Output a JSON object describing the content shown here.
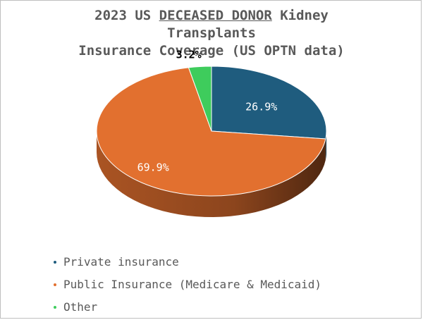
{
  "title": {
    "line1_prefix": "2023 US ",
    "line1_underlined": "DECEASED DONOR",
    "line1_suffix": " Kidney",
    "line2": "Transplants",
    "line3": "Insurance Coverage (US OPTN data)"
  },
  "chart_data": {
    "type": "pie",
    "style": "3d",
    "categories": [
      "Private insurance",
      "Public Insurance (Medicare & Medicaid)",
      "Other"
    ],
    "values": [
      26.9,
      69.9,
      3.2
    ],
    "data_labels": [
      "26.9%",
      "69.9%",
      "3.2%"
    ],
    "colors": [
      "#1f5c7e",
      "#e2702f",
      "#3ecc5c"
    ],
    "label_colors": [
      "#ffffff",
      "#ffffff",
      "#000000"
    ],
    "legend_position": "bottom-left"
  },
  "legend": {
    "items": [
      {
        "label": "Private insurance",
        "color": "#1f5c7e"
      },
      {
        "label": "Public Insurance (Medicare & Medicaid)",
        "color": "#e2702f"
      },
      {
        "label": "Other",
        "color": "#3ecc5c"
      }
    ]
  }
}
